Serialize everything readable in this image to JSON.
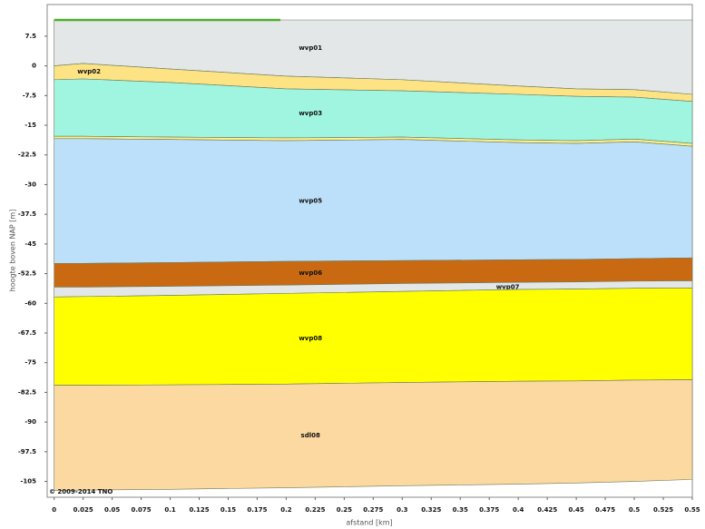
{
  "chart_data": {
    "type": "layers",
    "xlabel": "afstand [km]",
    "ylabel": "hoogte boven NAP [m]",
    "annotation": "© 2009-2014 TNO",
    "x": [
      0,
      0.025,
      0.1,
      0.2,
      0.3,
      0.4,
      0.45,
      0.5,
      0.55
    ],
    "series": [
      {
        "name": "wvp01",
        "color": "#e3e7e8",
        "values": [
          11.6,
          11.6,
          11.6,
          11.6,
          11.6,
          11.6,
          11.6,
          11.6,
          11.6
        ]
      },
      {
        "name": "wvp02",
        "color": "#fde383",
        "values": [
          0,
          0.6,
          -0.8,
          -2.6,
          -3.5,
          -5.1,
          -5.8,
          -6.0,
          -7.2
        ]
      },
      {
        "name": "wvp03",
        "color": "#a0f5e0",
        "values": [
          -3.5,
          -3.3,
          -4.2,
          -5.8,
          -6.3,
          -7.2,
          -7.7,
          -7.9,
          -9
        ]
      },
      {
        "color": "#fdf08a",
        "values": [
          -17.8,
          -17.8,
          -18.0,
          -18.2,
          -18.0,
          -18.7,
          -18.9,
          -18.5,
          -19.6
        ]
      },
      {
        "name": "wvp05",
        "color": "#bde0fa",
        "values": [
          -18.4,
          -18.4,
          -18.6,
          -18.9,
          -18.6,
          -19.4,
          -19.6,
          -19.2,
          -20.3
        ]
      },
      {
        "name": "wvp06",
        "color": "#c96a12",
        "values": [
          -49.9,
          -49.9,
          -49.7,
          -49.4,
          -49.2,
          -49.0,
          -48.9,
          -48.7,
          -48.5
        ]
      },
      {
        "name": "wvp07",
        "color": "#e3e7e8",
        "values": [
          -55.9,
          -55.9,
          -55.7,
          -55.4,
          -55.0,
          -54.7,
          -54.6,
          -54.4,
          -54.3
        ]
      },
      {
        "name": "wvp08",
        "color": "#ffff00",
        "values": [
          -58.4,
          -58.3,
          -58.0,
          -57.5,
          -57.0,
          -56.5,
          -56.4,
          -56.2,
          -56.1
        ]
      },
      {
        "name": "sdl08",
        "color": "#fbd9a0",
        "values": [
          -80.7,
          -80.7,
          -80.6,
          -80.4,
          -80.0,
          -79.7,
          -79.6,
          -79.4,
          -79.3
        ]
      }
    ],
    "base": [
      -107.3,
      -107.2,
      -107.0,
      -106.6,
      -106.1,
      -105.7,
      -105.4,
      -105.0,
      -104.5
    ],
    "xlim": [
      -0.006,
      0.55
    ],
    "ylim": [
      -109,
      15.5
    ],
    "xticks": [
      0,
      0.025,
      0.05,
      0.075,
      0.1,
      0.125,
      0.15,
      0.175,
      0.2,
      0.225,
      0.25,
      0.275,
      0.3,
      0.325,
      0.35,
      0.375,
      0.4,
      0.425,
      0.45,
      0.475,
      0.5,
      0.525,
      0.55
    ],
    "yticks": [
      7.5,
      0,
      -7.5,
      -15,
      -22.5,
      -30,
      -37.5,
      -45,
      -52.5,
      -60,
      -67.5,
      -75,
      -82.5,
      -90,
      -97.5,
      -105
    ]
  }
}
